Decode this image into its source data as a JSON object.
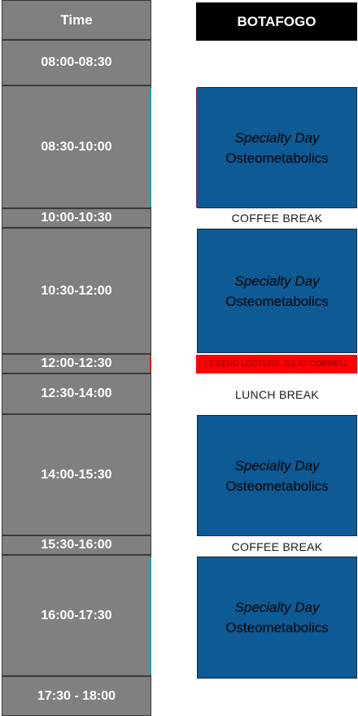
{
  "header": {
    "time_label": "Time",
    "room_label": "BOTAFOGO"
  },
  "time_slots": [
    "08:00-08:30",
    "08:30-10:00",
    "10:00-10:30",
    "10:30-12:00",
    "12:00-12:30",
    "12:30-14:00",
    "14:00-15:30",
    "15:30-16:00",
    "16:00-17:30",
    "17:30 - 18:00"
  ],
  "sessions": [
    {
      "line1": "Specialty Day",
      "line2": "Osteometabolics"
    },
    {
      "line1": "Specialty Day",
      "line2": "Osteometabolics"
    },
    {
      "line1": "Specialty Day",
      "line2": "Osteometabolics"
    },
    {
      "line1": "Specialty Day",
      "line2": "Osteometabolics"
    }
  ],
  "breaks": {
    "coffee_1": "COFFEE BREAK",
    "lunch": "LUNCH BREAK",
    "coffee_2": "COFFEE BREAK"
  },
  "red_strip_text": "LEGEND LECTURE JULIO CORRELL",
  "colors": {
    "time_cell_bg": "#808080",
    "room_header_bg": "#000000",
    "session_bg": "#0d5a94",
    "red_strip_bg": "#ff0000"
  }
}
